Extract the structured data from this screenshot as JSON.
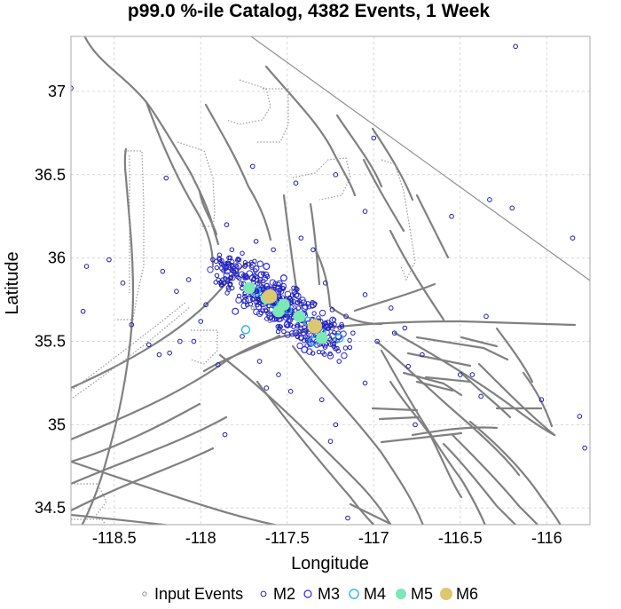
{
  "chart_data": {
    "type": "scatter",
    "title": "p99.0 %-ile Catalog, 4382 Events, 1 Week",
    "xlabel": "Longitude",
    "ylabel": "Latitude",
    "xlim": [
      -118.75,
      -115.75
    ],
    "ylim": [
      34.4,
      37.33
    ],
    "xticks": [
      -118.5,
      -118,
      -117.5,
      -117,
      -116.5,
      -116
    ],
    "yticks": [
      34.5,
      35,
      35.5,
      36,
      36.5,
      37
    ],
    "grid": true,
    "legend_position": "bottom",
    "legend": [
      "Input Events",
      "M2",
      "M3",
      "M4",
      "M5",
      "M6"
    ],
    "colors": {
      "input_events": "#8c8c8c",
      "M2": "#1c1cb0",
      "M3": "#2a2ad8",
      "M4": "#2ab6e6",
      "M5": "#7ce8b4",
      "M6": "#dcc870",
      "faults": "#808080",
      "grid": "#d9d9d9"
    },
    "series": [
      {
        "name": "M6",
        "points": [
          [
            -117.6,
            35.77
          ],
          [
            -117.34,
            35.59
          ]
        ]
      },
      {
        "name": "M5",
        "points": [
          [
            -117.72,
            35.82
          ],
          [
            -117.62,
            35.76
          ],
          [
            -117.52,
            35.72
          ],
          [
            -117.43,
            35.65
          ],
          [
            -117.3,
            35.52
          ],
          [
            -117.55,
            35.68
          ]
        ]
      },
      {
        "name": "M4",
        "points": [
          [
            -117.68,
            35.8
          ],
          [
            -117.58,
            35.73
          ],
          [
            -117.5,
            35.69
          ],
          [
            -117.38,
            35.62
          ],
          [
            -117.3,
            35.55
          ],
          [
            -117.74,
            35.57
          ],
          [
            -117.35,
            35.5
          ],
          [
            -117.2,
            35.52
          ]
        ]
      },
      {
        "name": "M3",
        "points": [
          [
            -117.8,
            35.92
          ],
          [
            -117.7,
            35.88
          ],
          [
            -117.65,
            35.9
          ],
          [
            -117.55,
            35.82
          ],
          [
            -117.45,
            35.78
          ],
          [
            -117.4,
            35.7
          ],
          [
            -117.6,
            35.65
          ],
          [
            -117.72,
            35.75
          ],
          [
            -117.5,
            35.6
          ],
          [
            -117.35,
            35.72
          ],
          [
            -117.28,
            35.6
          ],
          [
            -117.45,
            35.55
          ],
          [
            -117.62,
            35.95
          ],
          [
            -117.8,
            35.68
          ],
          [
            -117.52,
            35.88
          ],
          [
            -117.4,
            35.45
          ]
        ]
      },
      {
        "name": "M2",
        "points": [
          [
            -118.75,
            37.02
          ],
          [
            -118.68,
            35.68
          ],
          [
            -118.66,
            35.95
          ],
          [
            -118.53,
            35.99
          ],
          [
            -118.45,
            35.85
          ],
          [
            -118.4,
            35.6
          ],
          [
            -118.3,
            35.48
          ],
          [
            -118.24,
            35.42
          ],
          [
            -118.22,
            35.92
          ],
          [
            -118.18,
            35.43
          ],
          [
            -118.12,
            35.5
          ],
          [
            -118.04,
            35.5
          ],
          [
            -118.0,
            35.62
          ],
          [
            -118.07,
            35.87
          ],
          [
            -117.97,
            35.72
          ],
          [
            -117.93,
            35.99
          ],
          [
            -117.85,
            36.2
          ],
          [
            -117.82,
            36.05
          ],
          [
            -117.76,
            35.53
          ],
          [
            -117.68,
            36.1
          ],
          [
            -117.58,
            36.05
          ],
          [
            -117.42,
            36.12
          ],
          [
            -117.35,
            36.05
          ],
          [
            -117.28,
            35.85
          ],
          [
            -117.24,
            35.69
          ],
          [
            -117.16,
            35.65
          ],
          [
            -117.12,
            35.55
          ],
          [
            -117.05,
            35.78
          ],
          [
            -116.98,
            35.5
          ],
          [
            -116.88,
            35.55
          ],
          [
            -116.82,
            35.58
          ],
          [
            -116.8,
            35.35
          ],
          [
            -116.76,
            35.0
          ],
          [
            -116.72,
            35.42
          ],
          [
            -116.55,
            36.25
          ],
          [
            -116.5,
            35.3
          ],
          [
            -116.43,
            35.3
          ],
          [
            -116.38,
            35.17
          ],
          [
            -116.35,
            35.65
          ],
          [
            -116.33,
            36.35
          ],
          [
            -116.2,
            36.3
          ],
          [
            -116.18,
            37.27
          ],
          [
            -116.03,
            35.15
          ],
          [
            -115.85,
            36.12
          ],
          [
            -115.81,
            35.05
          ],
          [
            -115.78,
            34.86
          ],
          [
            -117.0,
            36.72
          ],
          [
            -117.22,
            36.5
          ],
          [
            -117.05,
            36.28
          ],
          [
            -117.45,
            36.45
          ],
          [
            -117.62,
            35.22
          ],
          [
            -117.48,
            35.2
          ],
          [
            -117.55,
            35.3
          ],
          [
            -117.3,
            35.15
          ],
          [
            -117.22,
            35.0
          ],
          [
            -117.25,
            34.9
          ],
          [
            -117.86,
            34.94
          ],
          [
            -117.15,
            34.44
          ],
          [
            -118.2,
            36.48
          ],
          [
            -117.7,
            36.55
          ],
          [
            -118.14,
            35.8
          ],
          [
            -117.9,
            35.36
          ],
          [
            -117.66,
            35.38
          ],
          [
            -117.2,
            35.38
          ],
          [
            -117.05,
            35.25
          ],
          [
            -116.9,
            35.7
          ]
        ]
      },
      {
        "name": "Input Events",
        "points": [
          [
            -117.66,
            35.84
          ],
          [
            -117.58,
            35.78
          ],
          [
            -117.5,
            35.74
          ],
          [
            -117.42,
            35.66
          ],
          [
            -117.36,
            35.58
          ],
          [
            -117.7,
            35.7
          ],
          [
            -117.6,
            35.62
          ],
          [
            -117.48,
            35.8
          ],
          [
            -117.4,
            35.6
          ],
          [
            -117.55,
            35.7
          ]
        ]
      }
    ]
  }
}
